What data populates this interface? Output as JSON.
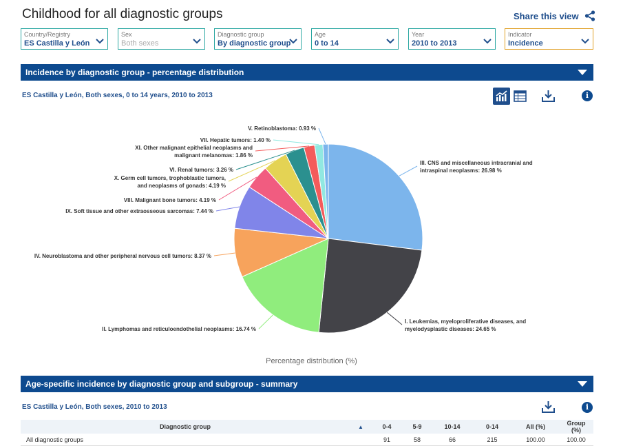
{
  "page": {
    "title": "Childhood for all diagnostic groups",
    "share_label": "Share this view"
  },
  "filters": [
    {
      "label": "Country/Registry",
      "value": "ES  Castilla y León",
      "dim": false,
      "highlight": false
    },
    {
      "label": "Sex",
      "value": "Both sexes",
      "dim": true,
      "highlight": false
    },
    {
      "label": "Diagnostic group",
      "value": "By diagnostic group",
      "dim": false,
      "highlight": false
    },
    {
      "label": "Age",
      "value": "0 to 14",
      "dim": false,
      "highlight": false
    },
    {
      "label": "Year",
      "value": "2010 to 2013",
      "dim": false,
      "highlight": false
    },
    {
      "label": "Indicator",
      "value": "Incidence",
      "dim": false,
      "highlight": true
    }
  ],
  "section1": {
    "title": "Incidence by diagnostic group - percentage distribution",
    "subtitle": "ES Castilla y León, Both sexes, 0 to 14 years, 2010 to 2013"
  },
  "chart_data": {
    "type": "pie",
    "xlabel": "Percentage distribution (%)",
    "slices": [
      {
        "label": "III. CNS and miscellaneous intracranial and intraspinal neoplasms: 26.98 %",
        "value": 26.98,
        "color": "#7cb5ec"
      },
      {
        "label": "I. Leukemias, myeloproliferative diseases, and myelodysplastic diseases: 24.65 %",
        "value": 24.65,
        "color": "#434348"
      },
      {
        "label": "II. Lymphomas and reticuloendothelial neoplasms: 16.74 %",
        "value": 16.74,
        "color": "#90ed7d"
      },
      {
        "label": "IV. Neuroblastoma and other peripheral nervous cell tumors: 8.37 %",
        "value": 8.37,
        "color": "#f7a35c"
      },
      {
        "label": "IX. Soft tissue and other extraosseous sarcomas: 7.44 %",
        "value": 7.44,
        "color": "#8085e9"
      },
      {
        "label": "VIII. Malignant bone tumors: 4.19 %",
        "value": 4.19,
        "color": "#f15c80"
      },
      {
        "label": "X. Germ cell tumors, trophoblastic tumors, and neoplasms of gonads: 4.19 %",
        "value": 4.19,
        "color": "#e4d354"
      },
      {
        "label": "VI. Renal tumors: 3.26 %",
        "value": 3.26,
        "color": "#2b908f"
      },
      {
        "label": "XI. Other malignant epithelial neoplasms and malignant melanomas: 1.86 %",
        "value": 1.86,
        "color": "#f45b5b"
      },
      {
        "label": "VII. Hepatic tumors: 1.40 %",
        "value": 1.4,
        "color": "#91e8e1"
      },
      {
        "label": "V. Retinoblastoma: 0.93 %",
        "value": 0.93,
        "color": "#7cb5ec"
      }
    ]
  },
  "section2": {
    "title": "Age-specific incidence by diagnostic group and subgroup - summary",
    "subtitle": "ES Castilla y León, Both sexes, 2010 to 2013"
  },
  "table": {
    "columns": [
      "Diagnostic group",
      "0-4",
      "5-9",
      "10-14",
      "0-14",
      "All (%)",
      "Group (%)"
    ],
    "rows": [
      [
        "All diagnostic groups",
        "91",
        "58",
        "66",
        "215",
        "100.00",
        "100.00"
      ]
    ]
  }
}
